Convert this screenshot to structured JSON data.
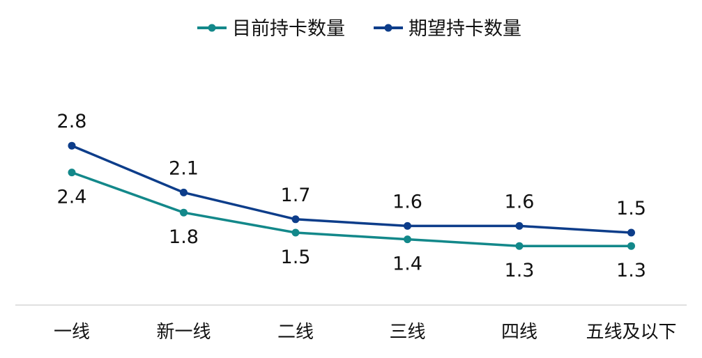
{
  "chart_data": {
    "type": "line",
    "categories": [
      "一线",
      "新一线",
      "二线",
      "三线",
      "四线",
      "五线及以下"
    ],
    "series": [
      {
        "name": "目前持卡数量",
        "values": [
          2.4,
          1.8,
          1.5,
          1.4,
          1.3,
          1.3
        ],
        "color": "#13888a",
        "label_position": "below"
      },
      {
        "name": "期望持卡数量",
        "values": [
          2.8,
          2.1,
          1.7,
          1.6,
          1.6,
          1.5
        ],
        "color": "#0d3d8a",
        "label_position": "above"
      }
    ],
    "ylim": [
      0,
      3
    ],
    "grid": false,
    "legend": "top-center",
    "axis_color": "#d6d6d6"
  }
}
